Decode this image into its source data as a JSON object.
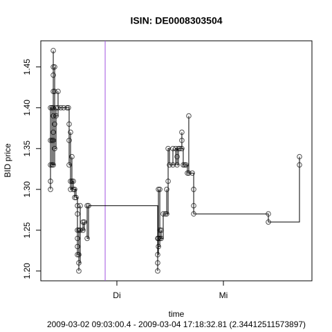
{
  "chart_data": {
    "type": "step",
    "title": "ISIN: DE0008303504",
    "xlabel": "time",
    "subtitle": "2009-03-02 09:03:00.4 - 2009-03-04 17:18:32.81 (2.34412511573897)",
    "ylabel": "BID price",
    "xlim": [
      0.286,
      2.831
    ],
    "ylim": [
      1.188,
      1.482
    ],
    "xticks": [
      {
        "value": 1,
        "label": "Di"
      },
      {
        "value": 2,
        "label": "Mi"
      }
    ],
    "yticks": [
      {
        "value": 1.2,
        "label": "1.20"
      },
      1.25,
      {
        "value": 1.3,
        "label": "1.30"
      },
      1.35,
      {
        "value": 1.4,
        "label": "1.40"
      },
      1.45
    ],
    "vline": 0.89,
    "vline_color": "#a050e0",
    "color": "#000000",
    "series": [
      {
        "x": [
          0.377,
          0.377,
          0.377,
          0.377,
          0.377,
          0.39,
          0.39,
          0.39,
          0.403,
          0.403,
          0.403,
          0.403,
          0.403,
          0.403,
          0.403,
          0.403,
          0.403,
          0.416,
          0.416,
          0.416,
          0.416,
          0.429,
          0.429,
          0.448,
          0.448,
          0.474,
          0.5,
          0.532,
          0.545,
          0.552,
          0.552,
          0.552,
          0.565,
          0.565,
          0.565,
          0.578,
          0.578,
          0.591,
          0.591,
          0.604,
          0.604,
          0.617,
          0.63,
          0.63,
          0.63,
          0.63,
          0.63,
          0.63,
          0.643,
          0.643,
          0.643,
          0.643,
          0.656,
          0.656,
          0.682,
          0.682,
          0.695,
          0.721,
          0.721,
          0.734,
          1.383,
          1.383,
          1.383,
          1.383,
          1.39,
          1.39,
          1.39,
          1.403,
          1.403,
          1.403,
          1.416,
          1.416,
          1.435,
          1.455,
          1.468,
          1.468,
          1.481,
          1.481,
          1.494,
          1.526,
          1.526,
          1.552,
          1.565,
          1.565,
          1.578,
          1.591,
          1.61,
          1.61,
          1.61,
          1.623,
          1.636,
          1.649,
          1.662,
          1.675,
          1.675,
          1.708,
          1.721,
          1.721,
          1.721,
          2.422,
          2.422,
          2.714,
          2.714
        ],
        "values": [
          1.3,
          1.31,
          1.33,
          1.36,
          1.4,
          1.36,
          1.4,
          1.33,
          1.47,
          1.45,
          1.44,
          1.42,
          1.4,
          1.39,
          1.37,
          1.36,
          1.33,
          1.45,
          1.42,
          1.38,
          1.35,
          1.4,
          1.39,
          1.42,
          1.4,
          1.4,
          1.4,
          1.4,
          1.4,
          1.38,
          1.36,
          1.33,
          1.37,
          1.31,
          1.3,
          1.34,
          1.31,
          1.31,
          1.3,
          1.29,
          1.3,
          1.29,
          1.28,
          1.27,
          1.25,
          1.24,
          1.23,
          1.22,
          1.25,
          1.22,
          1.2,
          1.21,
          1.28,
          1.25,
          1.26,
          1.25,
          1.26,
          1.28,
          1.24,
          1.28,
          1.24,
          1.2,
          1.21,
          1.22,
          1.3,
          1.24,
          1.23,
          1.3,
          1.25,
          1.24,
          1.25,
          1.24,
          1.27,
          1.27,
          1.3,
          1.27,
          1.31,
          1.35,
          1.33,
          1.35,
          1.33,
          1.35,
          1.34,
          1.33,
          1.35,
          1.35,
          1.37,
          1.36,
          1.35,
          1.33,
          1.33,
          1.33,
          1.32,
          1.39,
          1.32,
          1.32,
          1.3,
          1.28,
          1.27,
          1.27,
          1.26,
          1.33,
          1.34
        ]
      }
    ]
  }
}
